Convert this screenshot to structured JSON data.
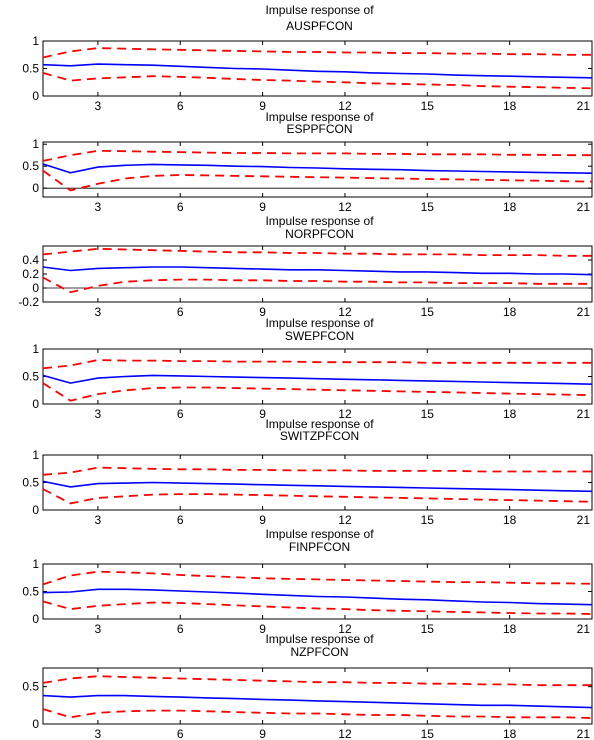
{
  "chart_data": [
    {
      "type": "line",
      "title": "Impulse response of AUSPFCON",
      "title_lines": [
        "Impulse response of",
        "AUSPFCON"
      ],
      "xlim": [
        1,
        21
      ],
      "ylim": [
        0,
        1
      ],
      "xticks": [
        3,
        6,
        9,
        12,
        15,
        18,
        21
      ],
      "yticks": [
        0,
        0.5,
        1
      ],
      "ytick_labels": [
        "0",
        "0.5",
        "1"
      ],
      "xtick_labels": [
        "3",
        "6",
        "9",
        "12",
        "15",
        "18",
        "21"
      ],
      "zero_line": false,
      "x": [
        1,
        2,
        3,
        4,
        5,
        6,
        7,
        8,
        9,
        10,
        11,
        12,
        13,
        14,
        15,
        16,
        17,
        18,
        19,
        20,
        21
      ],
      "series": [
        {
          "role": "response",
          "color": "#0000ff",
          "style": "solid",
          "values": [
            0.57,
            0.55,
            0.58,
            0.57,
            0.56,
            0.54,
            0.52,
            0.5,
            0.49,
            0.47,
            0.45,
            0.44,
            0.42,
            0.41,
            0.4,
            0.38,
            0.37,
            0.36,
            0.35,
            0.34,
            0.33
          ]
        },
        {
          "role": "upper",
          "color": "#ff0000",
          "style": "dashed",
          "values": [
            0.7,
            0.81,
            0.87,
            0.86,
            0.85,
            0.84,
            0.83,
            0.82,
            0.81,
            0.8,
            0.8,
            0.79,
            0.79,
            0.78,
            0.78,
            0.77,
            0.77,
            0.76,
            0.76,
            0.75,
            0.75
          ]
        },
        {
          "role": "lower",
          "color": "#ff0000",
          "style": "dashed",
          "values": [
            0.42,
            0.28,
            0.32,
            0.34,
            0.36,
            0.35,
            0.33,
            0.31,
            0.29,
            0.28,
            0.26,
            0.25,
            0.23,
            0.22,
            0.21,
            0.2,
            0.18,
            0.17,
            0.16,
            0.15,
            0.14
          ]
        }
      ]
    },
    {
      "type": "line",
      "title": "Impulse response of ESPPFCON",
      "title_lines": [
        "Impulse response of",
        "ESPPFCON"
      ],
      "xlim": [
        1,
        21
      ],
      "ylim": [
        -0.2,
        1.05
      ],
      "xticks": [
        3,
        6,
        9,
        12,
        15,
        18,
        21
      ],
      "yticks": [
        0,
        0.5,
        1
      ],
      "ytick_labels": [
        "0",
        "0.5",
        "1"
      ],
      "xtick_labels": [
        "3",
        "6",
        "9",
        "12",
        "15",
        "18",
        "21"
      ],
      "zero_line": true,
      "x": [
        1,
        2,
        3,
        4,
        5,
        6,
        7,
        8,
        9,
        10,
        11,
        12,
        13,
        14,
        15,
        16,
        17,
        18,
        19,
        20,
        21
      ],
      "series": [
        {
          "role": "response",
          "color": "#0000ff",
          "style": "solid",
          "values": [
            0.55,
            0.35,
            0.48,
            0.52,
            0.54,
            0.53,
            0.52,
            0.5,
            0.49,
            0.47,
            0.46,
            0.44,
            0.43,
            0.42,
            0.4,
            0.39,
            0.38,
            0.37,
            0.36,
            0.35,
            0.34
          ]
        },
        {
          "role": "upper",
          "color": "#ff0000",
          "style": "dashed",
          "values": [
            0.62,
            0.75,
            0.85,
            0.84,
            0.83,
            0.82,
            0.81,
            0.8,
            0.8,
            0.79,
            0.79,
            0.79,
            0.78,
            0.78,
            0.77,
            0.77,
            0.77,
            0.76,
            0.76,
            0.75,
            0.75
          ]
        },
        {
          "role": "lower",
          "color": "#ff0000",
          "style": "dashed",
          "values": [
            0.4,
            -0.05,
            0.1,
            0.22,
            0.28,
            0.3,
            0.29,
            0.28,
            0.27,
            0.26,
            0.25,
            0.24,
            0.23,
            0.22,
            0.21,
            0.2,
            0.19,
            0.18,
            0.17,
            0.16,
            0.15
          ]
        }
      ]
    },
    {
      "type": "line",
      "title": "Impulse response of NORPFCON",
      "title_lines": [
        "Impulse response of",
        "NORPFCON"
      ],
      "xlim": [
        1,
        21
      ],
      "ylim": [
        -0.2,
        0.6
      ],
      "xticks": [
        3,
        6,
        9,
        12,
        15,
        18,
        21
      ],
      "yticks": [
        -0.2,
        0,
        0.2,
        0.4
      ],
      "ytick_labels": [
        "-0.2",
        "0",
        "0.2",
        "0.4"
      ],
      "xtick_labels": [
        "3",
        "6",
        "9",
        "12",
        "15",
        "18",
        "21"
      ],
      "zero_line": true,
      "x": [
        1,
        2,
        3,
        4,
        5,
        6,
        7,
        8,
        9,
        10,
        11,
        12,
        13,
        14,
        15,
        16,
        17,
        18,
        19,
        20,
        21
      ],
      "series": [
        {
          "role": "response",
          "color": "#0000ff",
          "style": "solid",
          "values": [
            0.3,
            0.25,
            0.28,
            0.29,
            0.3,
            0.3,
            0.29,
            0.28,
            0.27,
            0.26,
            0.26,
            0.25,
            0.24,
            0.23,
            0.23,
            0.22,
            0.21,
            0.21,
            0.2,
            0.2,
            0.19
          ]
        },
        {
          "role": "upper",
          "color": "#ff0000",
          "style": "dashed",
          "values": [
            0.48,
            0.52,
            0.56,
            0.55,
            0.54,
            0.53,
            0.52,
            0.51,
            0.51,
            0.5,
            0.5,
            0.49,
            0.49,
            0.48,
            0.48,
            0.48,
            0.47,
            0.47,
            0.47,
            0.46,
            0.46
          ]
        },
        {
          "role": "lower",
          "color": "#ff0000",
          "style": "dashed",
          "values": [
            0.15,
            -0.06,
            0.03,
            0.09,
            0.11,
            0.12,
            0.12,
            0.11,
            0.11,
            0.1,
            0.1,
            0.09,
            0.09,
            0.08,
            0.08,
            0.07,
            0.07,
            0.07,
            0.06,
            0.06,
            0.06
          ]
        }
      ]
    },
    {
      "type": "line",
      "title": "Impulse response of SWEPFCON",
      "title_lines": [
        "Impulse response of",
        "SWEPFCON"
      ],
      "xlim": [
        1,
        21
      ],
      "ylim": [
        0,
        1
      ],
      "xticks": [
        3,
        6,
        9,
        12,
        15,
        18,
        21
      ],
      "yticks": [
        0,
        0.5,
        1
      ],
      "ytick_labels": [
        "0",
        "0.5",
        "1"
      ],
      "xtick_labels": [
        "3",
        "6",
        "9",
        "12",
        "15",
        "18",
        "21"
      ],
      "zero_line": false,
      "x": [
        1,
        2,
        3,
        4,
        5,
        6,
        7,
        8,
        9,
        10,
        11,
        12,
        13,
        14,
        15,
        16,
        17,
        18,
        19,
        20,
        21
      ],
      "series": [
        {
          "role": "response",
          "color": "#0000ff",
          "style": "solid",
          "values": [
            0.52,
            0.38,
            0.47,
            0.5,
            0.52,
            0.51,
            0.5,
            0.49,
            0.48,
            0.47,
            0.46,
            0.45,
            0.44,
            0.43,
            0.42,
            0.41,
            0.4,
            0.39,
            0.38,
            0.37,
            0.36
          ]
        },
        {
          "role": "upper",
          "color": "#ff0000",
          "style": "dashed",
          "values": [
            0.65,
            0.7,
            0.8,
            0.79,
            0.79,
            0.78,
            0.78,
            0.77,
            0.77,
            0.77,
            0.76,
            0.76,
            0.76,
            0.76,
            0.75,
            0.75,
            0.75,
            0.75,
            0.75,
            0.75,
            0.75
          ]
        },
        {
          "role": "lower",
          "color": "#ff0000",
          "style": "dashed",
          "values": [
            0.38,
            0.06,
            0.18,
            0.25,
            0.29,
            0.3,
            0.3,
            0.29,
            0.28,
            0.27,
            0.26,
            0.25,
            0.24,
            0.23,
            0.22,
            0.21,
            0.2,
            0.19,
            0.18,
            0.17,
            0.16
          ]
        }
      ]
    },
    {
      "type": "line",
      "title": "Impulse response of SWITZPFCON",
      "title_lines": [
        "Impulse response of",
        "SWITZPFCON"
      ],
      "xlim": [
        1,
        21
      ],
      "ylim": [
        0,
        1
      ],
      "xticks": [
        3,
        6,
        9,
        12,
        15,
        18,
        21
      ],
      "yticks": [
        0,
        0.5,
        1
      ],
      "ytick_labels": [
        "0",
        "0.5",
        "1"
      ],
      "xtick_labels": [
        "3",
        "6",
        "9",
        "12",
        "15",
        "18",
        "21"
      ],
      "zero_line": false,
      "x": [
        1,
        2,
        3,
        4,
        5,
        6,
        7,
        8,
        9,
        10,
        11,
        12,
        13,
        14,
        15,
        16,
        17,
        18,
        19,
        20,
        21
      ],
      "series": [
        {
          "role": "response",
          "color": "#0000ff",
          "style": "solid",
          "values": [
            0.52,
            0.42,
            0.48,
            0.49,
            0.5,
            0.49,
            0.48,
            0.47,
            0.46,
            0.45,
            0.44,
            0.43,
            0.42,
            0.41,
            0.4,
            0.39,
            0.38,
            0.37,
            0.36,
            0.35,
            0.34
          ]
        },
        {
          "role": "upper",
          "color": "#ff0000",
          "style": "dashed",
          "values": [
            0.64,
            0.68,
            0.77,
            0.76,
            0.75,
            0.74,
            0.74,
            0.73,
            0.73,
            0.72,
            0.72,
            0.72,
            0.71,
            0.71,
            0.71,
            0.71,
            0.7,
            0.7,
            0.7,
            0.7,
            0.7
          ]
        },
        {
          "role": "lower",
          "color": "#ff0000",
          "style": "dashed",
          "values": [
            0.38,
            0.12,
            0.22,
            0.25,
            0.28,
            0.29,
            0.29,
            0.28,
            0.27,
            0.26,
            0.25,
            0.24,
            0.23,
            0.22,
            0.21,
            0.2,
            0.19,
            0.18,
            0.17,
            0.16,
            0.15
          ]
        }
      ]
    },
    {
      "type": "line",
      "title": "Impulse response of FINPFCON",
      "title_lines": [
        "Impulse response of",
        "FINPFCON"
      ],
      "xlim": [
        1,
        21
      ],
      "ylim": [
        0,
        1
      ],
      "xticks": [
        3,
        6,
        9,
        12,
        15,
        18,
        21
      ],
      "yticks": [
        0,
        0.5,
        1
      ],
      "ytick_labels": [
        "0",
        "0.5",
        "1"
      ],
      "xtick_labels": [
        "3",
        "6",
        "9",
        "12",
        "15",
        "18",
        "21"
      ],
      "zero_line": false,
      "x": [
        1,
        2,
        3,
        4,
        5,
        6,
        7,
        8,
        9,
        10,
        11,
        12,
        13,
        14,
        15,
        16,
        17,
        18,
        19,
        20,
        21
      ],
      "series": [
        {
          "role": "response",
          "color": "#0000ff",
          "style": "solid",
          "values": [
            0.48,
            0.49,
            0.54,
            0.54,
            0.53,
            0.51,
            0.49,
            0.47,
            0.45,
            0.43,
            0.41,
            0.4,
            0.38,
            0.36,
            0.35,
            0.33,
            0.31,
            0.3,
            0.28,
            0.27,
            0.26
          ]
        },
        {
          "role": "upper",
          "color": "#ff0000",
          "style": "dashed",
          "values": [
            0.63,
            0.79,
            0.86,
            0.85,
            0.83,
            0.8,
            0.78,
            0.76,
            0.74,
            0.73,
            0.72,
            0.71,
            0.7,
            0.69,
            0.68,
            0.67,
            0.67,
            0.66,
            0.65,
            0.65,
            0.64
          ]
        },
        {
          "role": "lower",
          "color": "#ff0000",
          "style": "dashed",
          "values": [
            0.32,
            0.18,
            0.24,
            0.27,
            0.3,
            0.29,
            0.27,
            0.25,
            0.23,
            0.21,
            0.19,
            0.18,
            0.16,
            0.15,
            0.14,
            0.13,
            0.12,
            0.11,
            0.1,
            0.1,
            0.09
          ]
        }
      ]
    },
    {
      "type": "line",
      "title": "Impulse response of NZPFCON",
      "title_lines": [
        "Impulse response of",
        "NZPFCON"
      ],
      "xlim": [
        1,
        21
      ],
      "ylim": [
        0,
        0.75
      ],
      "xticks": [
        3,
        6,
        9,
        12,
        15,
        18,
        21
      ],
      "yticks": [
        0,
        0.5
      ],
      "ytick_labels": [
        "0",
        "0.5"
      ],
      "xtick_labels": [
        "3",
        "6",
        "9",
        "12",
        "15",
        "18",
        "21"
      ],
      "zero_line": false,
      "x": [
        1,
        2,
        3,
        4,
        5,
        6,
        7,
        8,
        9,
        10,
        11,
        12,
        13,
        14,
        15,
        16,
        17,
        18,
        19,
        20,
        21
      ],
      "series": [
        {
          "role": "response",
          "color": "#0000ff",
          "style": "solid",
          "values": [
            0.38,
            0.36,
            0.38,
            0.38,
            0.37,
            0.36,
            0.35,
            0.34,
            0.33,
            0.32,
            0.31,
            0.3,
            0.29,
            0.28,
            0.27,
            0.26,
            0.25,
            0.25,
            0.24,
            0.23,
            0.22
          ]
        },
        {
          "role": "upper",
          "color": "#ff0000",
          "style": "dashed",
          "values": [
            0.55,
            0.61,
            0.64,
            0.63,
            0.62,
            0.61,
            0.6,
            0.59,
            0.58,
            0.57,
            0.56,
            0.56,
            0.55,
            0.55,
            0.54,
            0.54,
            0.53,
            0.53,
            0.52,
            0.52,
            0.52
          ]
        },
        {
          "role": "lower",
          "color": "#ff0000",
          "style": "dashed",
          "values": [
            0.2,
            0.09,
            0.15,
            0.17,
            0.18,
            0.18,
            0.17,
            0.16,
            0.15,
            0.14,
            0.14,
            0.13,
            0.12,
            0.12,
            0.11,
            0.1,
            0.1,
            0.09,
            0.09,
            0.09,
            0.08
          ]
        }
      ]
    }
  ]
}
